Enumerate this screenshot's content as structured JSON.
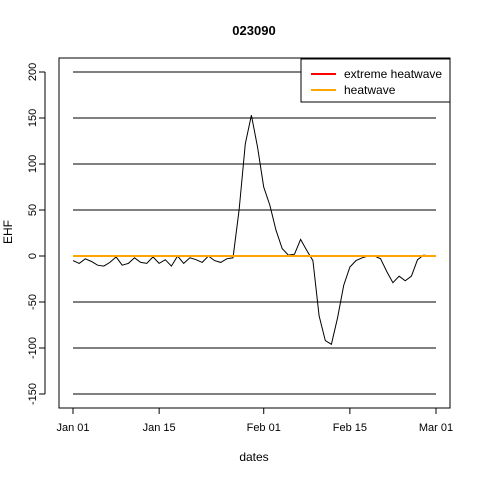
{
  "chart_data": {
    "type": "line",
    "title": "023090",
    "xlabel": "dates",
    "ylabel": "EHF",
    "ylim": [
      -150,
      200
    ],
    "yticks": [
      -150,
      -100,
      -50,
      0,
      50,
      100,
      150,
      200
    ],
    "ytick_labels": [
      "-150",
      "-100",
      "-50",
      "0",
      "50",
      "100",
      "150",
      "200"
    ],
    "xlim": [
      "2023-01-01",
      "2023-03-01"
    ],
    "xticks": [
      "2023-01-01",
      "2023-01-15",
      "2023-02-01",
      "2023-02-15",
      "2023-03-01"
    ],
    "xtick_labels": [
      "Jan 01",
      "Jan 15",
      "Feb 01",
      "Feb 15",
      "Mar 01"
    ],
    "grid": "horizontal",
    "legend_position": "top-right",
    "legend": [
      {
        "label": "extreme heatwave",
        "color": "#ff0000"
      },
      {
        "label": "heatwave",
        "color": "#ffa500"
      }
    ],
    "reference_lines": [
      {
        "name": "extreme heatwave",
        "y": 0,
        "color": "#ff0000"
      },
      {
        "name": "heatwave",
        "y": 0,
        "color": "#ffa500"
      }
    ],
    "series": [
      {
        "line_color": "#000000",
        "x": [
          "2023-01-01",
          "2023-01-02",
          "2023-01-03",
          "2023-01-04",
          "2023-01-05",
          "2023-01-06",
          "2023-01-07",
          "2023-01-08",
          "2023-01-09",
          "2023-01-10",
          "2023-01-11",
          "2023-01-12",
          "2023-01-13",
          "2023-01-14",
          "2023-01-15",
          "2023-01-16",
          "2023-01-17",
          "2023-01-18",
          "2023-01-19",
          "2023-01-20",
          "2023-01-21",
          "2023-01-22",
          "2023-01-23",
          "2023-01-24",
          "2023-01-25",
          "2023-01-26",
          "2023-01-27",
          "2023-01-28",
          "2023-01-29",
          "2023-01-30",
          "2023-01-31",
          "2023-02-01",
          "2023-02-02",
          "2023-02-03",
          "2023-02-04",
          "2023-02-05",
          "2023-02-06",
          "2023-02-07",
          "2023-02-08",
          "2023-02-09",
          "2023-02-10",
          "2023-02-11",
          "2023-02-12",
          "2023-02-13",
          "2023-02-14",
          "2023-02-15",
          "2023-02-16",
          "2023-02-17",
          "2023-02-18",
          "2023-02-19",
          "2023-02-20",
          "2023-02-21",
          "2023-02-22",
          "2023-02-23",
          "2023-02-24",
          "2023-02-25",
          "2023-02-26",
          "2023-02-27",
          "2023-02-28"
        ],
        "values": [
          -5,
          -8,
          -3,
          -6,
          -10,
          -11,
          -7,
          -1,
          -10,
          -8,
          -2,
          -7,
          -8,
          -1,
          -8,
          -4,
          -11,
          0,
          -8,
          -2,
          -4,
          -7,
          0,
          -5,
          -7,
          -3,
          -2,
          50,
          122,
          153,
          118,
          75,
          55,
          28,
          8,
          1,
          2,
          18,
          6,
          -5,
          -65,
          -92,
          -96,
          -67,
          -32,
          -12,
          -5,
          -2,
          0,
          0,
          -3,
          -17,
          -29,
          -22,
          -27,
          -22,
          -4,
          1,
          0
        ]
      }
    ]
  }
}
